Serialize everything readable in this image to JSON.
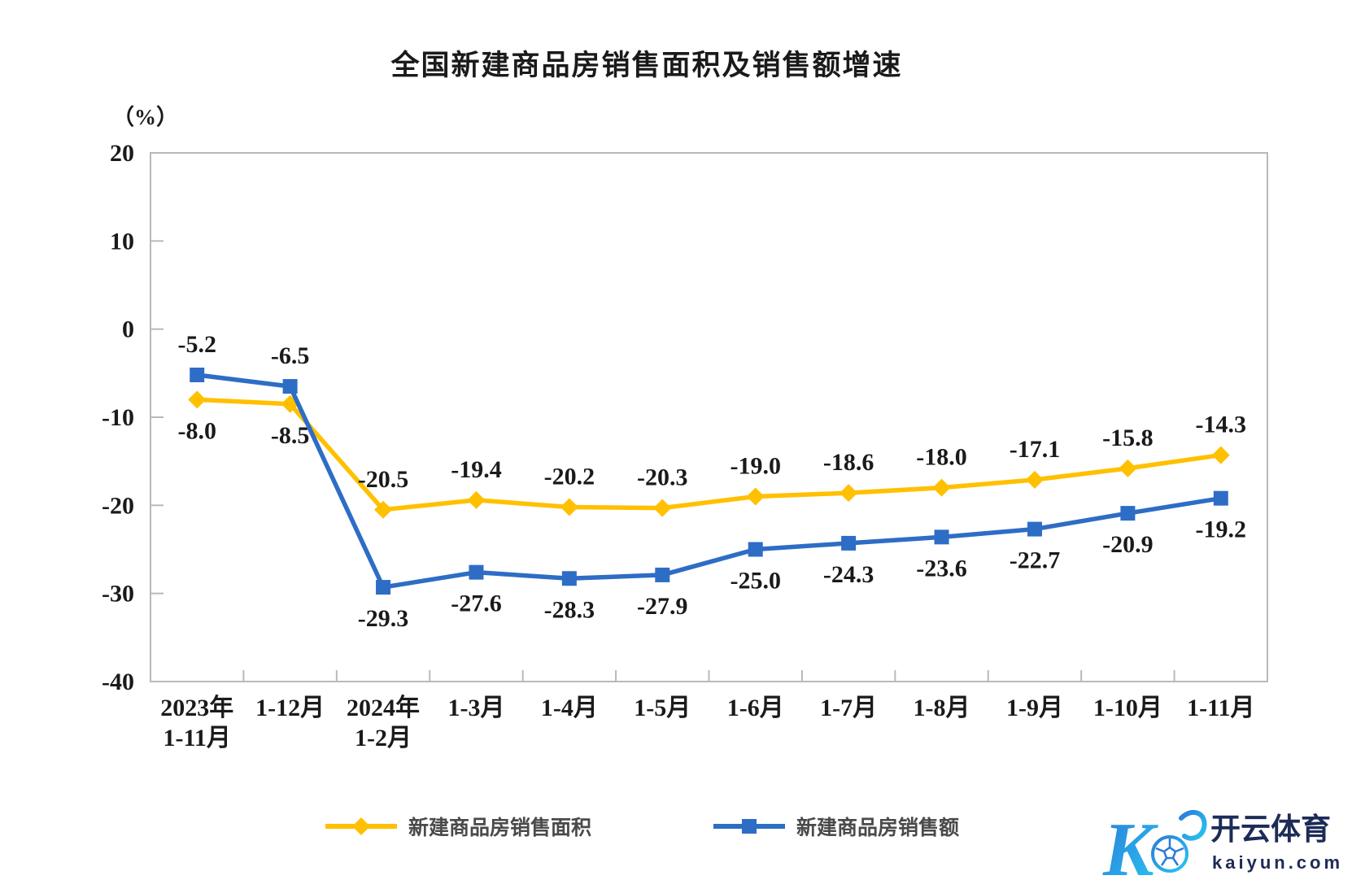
{
  "title": "全国新建商品房销售面积及销售额增速",
  "chart_data": {
    "type": "line",
    "title": "全国新建商品房销售面积及销售额增速",
    "unit_label": "（%）",
    "ylim": [
      -40,
      20
    ],
    "yticks": [
      20,
      10,
      0,
      -10,
      -20,
      -30,
      -40
    ],
    "grid": false,
    "legend_position": "bottom",
    "categories": [
      [
        "2023年",
        "1-11月"
      ],
      [
        "1-12月"
      ],
      [
        "2024年",
        "1-2月"
      ],
      [
        "1-3月"
      ],
      [
        "1-4月"
      ],
      [
        "1-5月"
      ],
      [
        "1-6月"
      ],
      [
        "1-7月"
      ],
      [
        "1-8月"
      ],
      [
        "1-9月"
      ],
      [
        "1-10月"
      ],
      [
        "1-11月"
      ]
    ],
    "series": [
      {
        "name": "新建商品房销售面积",
        "color": "#FFC000",
        "marker": "diamond",
        "values": [
          -8.0,
          -8.5,
          -20.5,
          -19.4,
          -20.2,
          -20.3,
          -19.0,
          -18.6,
          -18.0,
          -17.1,
          -15.8,
          -14.3
        ],
        "label_side": [
          "below",
          "below",
          "above",
          "above",
          "above",
          "above",
          "above",
          "above",
          "above",
          "above",
          "above",
          "above"
        ]
      },
      {
        "name": "新建商品房销售额",
        "color": "#2E6DC5",
        "marker": "square",
        "values": [
          -5.2,
          -6.5,
          -29.3,
          -27.6,
          -28.3,
          -27.9,
          -25.0,
          -24.3,
          -23.6,
          -22.7,
          -20.9,
          -19.2
        ],
        "label_side": [
          "above",
          "above",
          "below",
          "below",
          "below",
          "below",
          "below",
          "below",
          "below",
          "below",
          "below",
          "below"
        ]
      }
    ],
    "axis_color": "#b9b9b9",
    "label_color": "#1a1a1a"
  },
  "watermark": {
    "brand": "开云体育",
    "domain": "kaiyun.com",
    "mark_letter": "K",
    "brand_color": "#1d2b57",
    "gradient_start": "#2b7bd9",
    "gradient_end": "#29c6f2"
  }
}
